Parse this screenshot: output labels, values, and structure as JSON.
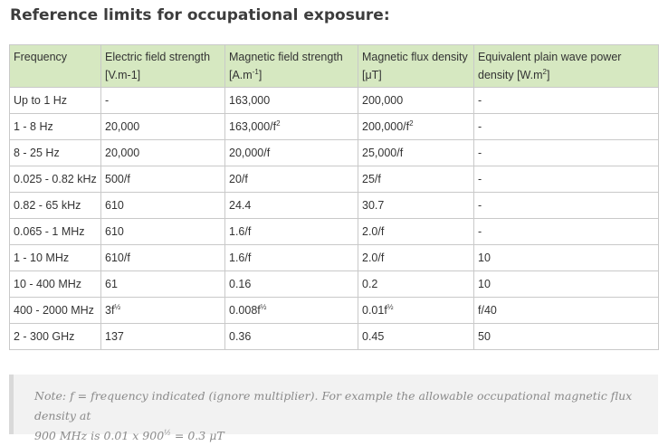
{
  "heading": "Reference limits for occupational exposure:",
  "table": {
    "headers": [
      [
        "Frequency"
      ],
      [
        "Electric field strength",
        "[V.m-1]"
      ],
      [
        "Magnetic field strength",
        "[A.m",
        "-1",
        "]"
      ],
      [
        "Magnetic flux density",
        "[μT]"
      ],
      [
        "Equivalent plain wave power",
        "density [W.m",
        "2",
        "]"
      ]
    ],
    "rows": [
      {
        "freq": "Up to 1 Hz",
        "e": "-",
        "h": "163,000",
        "h_sup": "",
        "b": "200,000",
        "b_sup": "",
        "s": "-",
        "s_sup": ""
      },
      {
        "freq": "1 - 8 Hz",
        "e": "20,000",
        "h": "163,000/f",
        "h_sup": "2",
        "b": "200,000/f",
        "b_sup": "2",
        "s": "-",
        "s_sup": ""
      },
      {
        "freq": "8 - 25 Hz",
        "e": "20,000",
        "h": "20,000/f",
        "h_sup": "",
        "b": "25,000/f",
        "b_sup": "",
        "s": "-",
        "s_sup": ""
      },
      {
        "freq": "0.025 - 0.82 kHz",
        "e": "500/f",
        "h": "20/f",
        "h_sup": "",
        "b": "25/f",
        "b_sup": "",
        "s": "-",
        "s_sup": ""
      },
      {
        "freq": "0.82 - 65 kHz",
        "e": "610",
        "h": "24.4",
        "h_sup": "",
        "b": "30.7",
        "b_sup": "",
        "s": "-",
        "s_sup": ""
      },
      {
        "freq": "0.065 - 1 MHz",
        "e": "610",
        "h": "1.6/f",
        "h_sup": "",
        "b": "2.0/f",
        "b_sup": "",
        "s": "-",
        "s_sup": ""
      },
      {
        "freq": "1 - 10 MHz",
        "e": "610/f",
        "h": "1.6/f",
        "h_sup": "",
        "b": "2.0/f",
        "b_sup": "",
        "s": "10",
        "s_sup": ""
      },
      {
        "freq": "10 - 400 MHz",
        "e": "61",
        "h": "0.16",
        "h_sup": "",
        "b": "0.2",
        "b_sup": "",
        "s": "10",
        "s_sup": ""
      },
      {
        "freq": "400 - 2000 MHz",
        "e": "3f",
        "e_sup": "½",
        "h": "0.008f",
        "h_sup": "½",
        "b": "0.01f",
        "b_sup": "½",
        "s": "f/40",
        "s_sup": ""
      },
      {
        "freq": "2 - 300 GHz",
        "e": "137",
        "h": "0.36",
        "h_sup": "",
        "b": "0.45",
        "b_sup": "",
        "s": "50",
        "s_sup": ""
      }
    ]
  },
  "note": {
    "line1": "Note: f = frequency indicated (ignore multiplier).  For example the allowable occupational magnetic flux  density at",
    "line2_a": "900 MHz is 0.01 x 900",
    "line2_sup": "½",
    "line2_b": " = 0.3 μT"
  }
}
